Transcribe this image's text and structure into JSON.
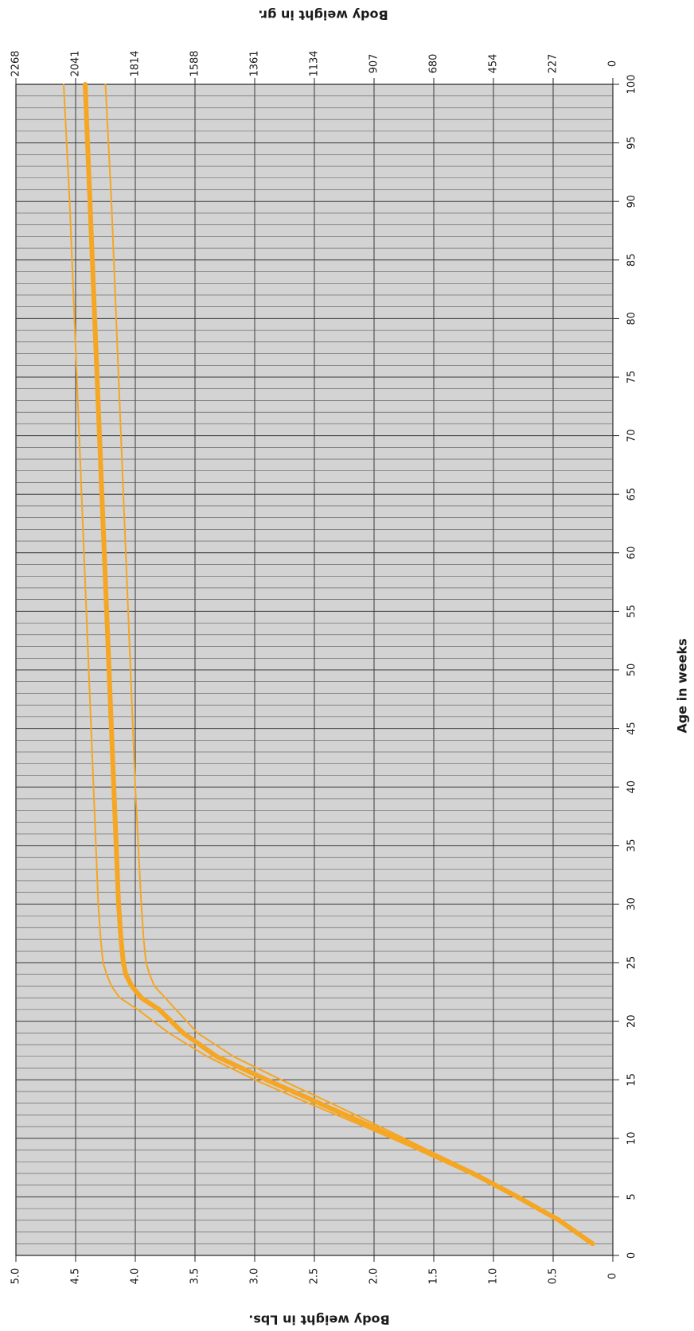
{
  "chart_data": {
    "type": "line",
    "orientation": "rotated-90-clockwise",
    "xlabel": "Age in weeks",
    "ylabel": "Body weight in Lbs.",
    "y2label": "Body weight in gr.",
    "xlim": [
      0,
      100
    ],
    "ylim": [
      0,
      5.0
    ],
    "x_ticks": [
      "0",
      "5",
      "10",
      "15",
      "20",
      "25",
      "30",
      "35",
      "40",
      "45",
      "50",
      "55",
      "60",
      "65",
      "70",
      "75",
      "80",
      "85",
      "90",
      "95",
      "100"
    ],
    "y_ticks": [
      "0",
      "0.5",
      "1.0",
      "1.5",
      "2.0",
      "2.5",
      "3.0",
      "3.5",
      "4.0",
      "4.5",
      "5.0"
    ],
    "y2_ticks": [
      "0",
      "227",
      "454",
      "680",
      "907",
      "1134",
      "1361",
      "1588",
      "1814",
      "2041",
      "2268"
    ],
    "grid": true,
    "background": "#d3d3d3",
    "line_color": "#f5a623",
    "series": [
      {
        "role": "upper",
        "x": [
          1,
          3,
          5,
          7,
          9,
          11,
          13,
          15,
          17,
          19,
          21,
          22,
          23,
          24,
          25,
          27,
          30,
          40,
          50,
          60,
          70,
          80,
          90,
          100
        ],
        "y": [
          0.18,
          0.47,
          0.82,
          1.2,
          1.63,
          2.08,
          2.55,
          3.0,
          3.4,
          3.72,
          3.98,
          4.13,
          4.2,
          4.24,
          4.27,
          4.29,
          4.31,
          4.35,
          4.39,
          4.43,
          4.47,
          4.51,
          4.55,
          4.6
        ]
      },
      {
        "role": "standard",
        "x": [
          1,
          3,
          5,
          7,
          9,
          11,
          13,
          15,
          17,
          19,
          21,
          22,
          23,
          24,
          25,
          27,
          30,
          40,
          50,
          60,
          70,
          80,
          90,
          100
        ],
        "y": [
          0.17,
          0.45,
          0.8,
          1.17,
          1.6,
          2.02,
          2.46,
          2.9,
          3.32,
          3.6,
          3.8,
          3.95,
          4.03,
          4.08,
          4.1,
          4.12,
          4.14,
          4.18,
          4.22,
          4.26,
          4.3,
          4.34,
          4.38,
          4.42
        ]
      },
      {
        "role": "lower",
        "x": [
          1,
          3,
          5,
          7,
          9,
          11,
          13,
          15,
          17,
          19,
          21,
          22,
          23,
          24,
          25,
          27,
          30,
          40,
          50,
          60,
          70,
          80,
          90,
          100
        ],
        "y": [
          0.16,
          0.43,
          0.77,
          1.14,
          1.55,
          1.95,
          2.36,
          2.78,
          3.18,
          3.48,
          3.66,
          3.75,
          3.84,
          3.88,
          3.91,
          3.93,
          3.95,
          4.0,
          4.04,
          4.08,
          4.12,
          4.16,
          4.2,
          4.25
        ]
      }
    ]
  }
}
